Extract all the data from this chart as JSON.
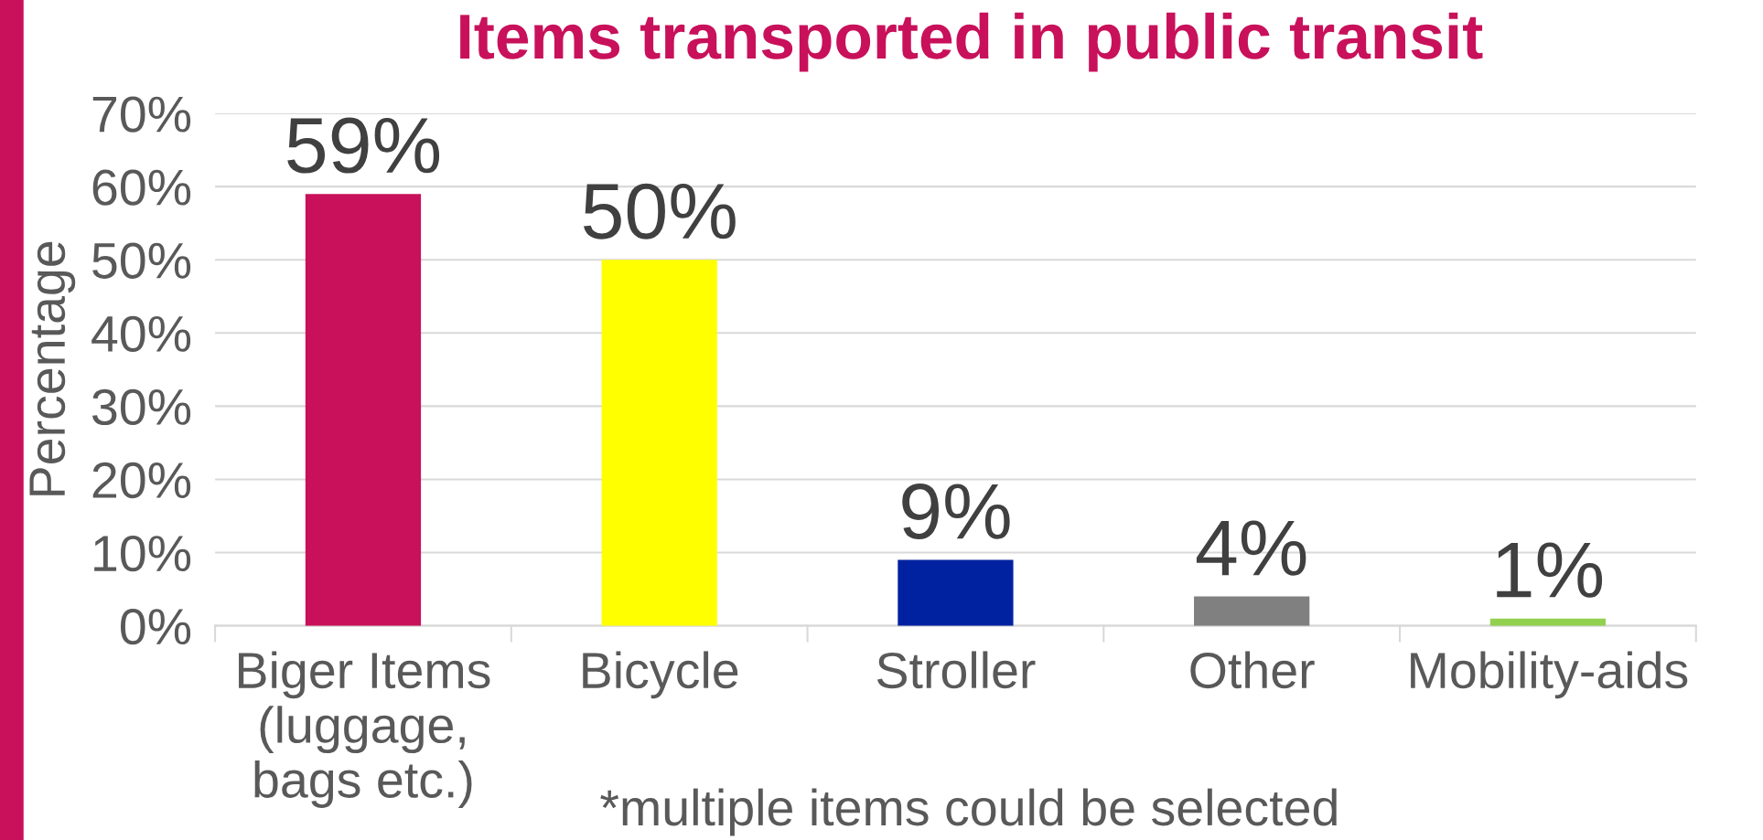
{
  "chart_data": {
    "type": "bar",
    "title": "Items transported in public transit",
    "ylabel": "Percentage",
    "categories": [
      "Biger Items\n(luggage,\nbags etc.)",
      "Bicycle",
      "Stroller",
      "Other",
      "Mobility-aids"
    ],
    "values": [
      59,
      50,
      9,
      4,
      1
    ],
    "colors": [
      "#c8115a",
      "#ffff00",
      "#0022a0",
      "#808080",
      "#92d050"
    ],
    "value_labels": [
      "59%",
      "50%",
      "9%",
      "4%",
      "1%"
    ],
    "ylim": [
      0,
      70
    ],
    "yticks": [
      {
        "value": 0,
        "label": "0%"
      },
      {
        "value": 10,
        "label": "10%"
      },
      {
        "value": 20,
        "label": "20%"
      },
      {
        "value": 30,
        "label": "30%"
      },
      {
        "value": 40,
        "label": "40%"
      },
      {
        "value": 50,
        "label": "50%"
      },
      {
        "value": 60,
        "label": "60%"
      },
      {
        "value": 70,
        "label": "70%"
      }
    ],
    "grid": "y",
    "annotations": [
      "*multiple items could be selected"
    ]
  }
}
